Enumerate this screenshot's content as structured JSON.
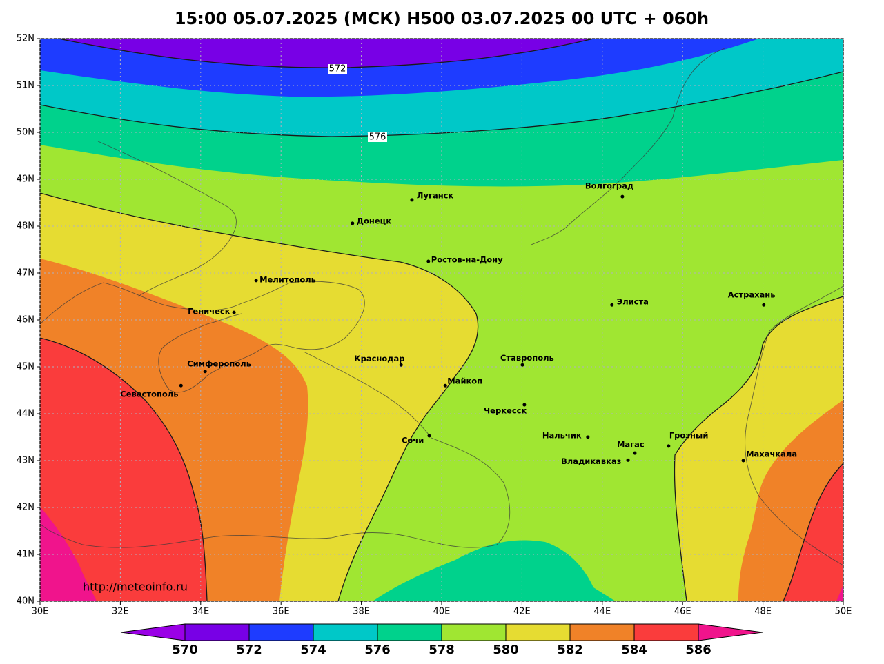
{
  "header": {
    "title": "15:00 05.07.2025 (МСК) H500  03.07.2025 00 UTC + 060h"
  },
  "map": {
    "lon_ticks": [
      {
        "value": 30,
        "label": "30E"
      },
      {
        "value": 32,
        "label": "32E"
      },
      {
        "value": 34,
        "label": "34E"
      },
      {
        "value": 36,
        "label": "36E"
      },
      {
        "value": 38,
        "label": "38E"
      },
      {
        "value": 40,
        "label": "40E"
      },
      {
        "value": 42,
        "label": "42E"
      },
      {
        "value": 44,
        "label": "44E"
      },
      {
        "value": 46,
        "label": "46E"
      },
      {
        "value": 48,
        "label": "48E"
      },
      {
        "value": 50,
        "label": "50E"
      }
    ],
    "lat_ticks": [
      {
        "value": 40,
        "label": "40N"
      },
      {
        "value": 41,
        "label": "41N"
      },
      {
        "value": 42,
        "label": "42N"
      },
      {
        "value": 43,
        "label": "43N"
      },
      {
        "value": 44,
        "label": "44N"
      },
      {
        "value": 45,
        "label": "45N"
      },
      {
        "value": 46,
        "label": "46N"
      },
      {
        "value": 47,
        "label": "47N"
      },
      {
        "value": 48,
        "label": "48N"
      },
      {
        "value": 49,
        "label": "49N"
      },
      {
        "value": 50,
        "label": "50N"
      },
      {
        "value": 51,
        "label": "51N"
      },
      {
        "value": 52,
        "label": "52N"
      }
    ],
    "lonlim": [
      30,
      50
    ],
    "latlim": [
      40,
      52
    ],
    "grid": true,
    "contour_labels": [
      572,
      576
    ],
    "cities": [
      {
        "name": "Волгоград",
        "lon": 44.5,
        "lat": 48.63
      },
      {
        "name": "Луганск",
        "lon": 39.26,
        "lat": 48.56
      },
      {
        "name": "Донецк",
        "lon": 37.78,
        "lat": 48.06
      },
      {
        "name": "Ростов-на-Дону",
        "lon": 39.67,
        "lat": 47.25
      },
      {
        "name": "Мелитополь",
        "lon": 35.38,
        "lat": 46.84
      },
      {
        "name": "Геническ",
        "lon": 34.83,
        "lat": 46.16
      },
      {
        "name": "Элиста",
        "lon": 44.24,
        "lat": 46.32
      },
      {
        "name": "Астрахань",
        "lon": 48.02,
        "lat": 46.32
      },
      {
        "name": "Симферополь",
        "lon": 34.11,
        "lat": 44.9
      },
      {
        "name": "Севастополь",
        "lon": 33.51,
        "lat": 44.6
      },
      {
        "name": "Краснодар",
        "lon": 38.99,
        "lat": 45.04
      },
      {
        "name": "Майкоп",
        "lon": 40.09,
        "lat": 44.6
      },
      {
        "name": "Ставрополь",
        "lon": 42.01,
        "lat": 45.04
      },
      {
        "name": "Черкесск",
        "lon": 42.06,
        "lat": 44.19
      },
      {
        "name": "Сочи",
        "lon": 39.69,
        "lat": 43.53
      },
      {
        "name": "Нальчик",
        "lon": 43.64,
        "lat": 43.5
      },
      {
        "name": "Магас",
        "lon": 44.81,
        "lat": 43.16
      },
      {
        "name": "Владикавказ",
        "lon": 44.64,
        "lat": 43.01
      },
      {
        "name": "Грозный",
        "lon": 45.65,
        "lat": 43.31
      },
      {
        "name": "Махачкала",
        "lon": 47.51,
        "lat": 43.0
      }
    ]
  },
  "colorbar": {
    "levels": [
      570,
      572,
      574,
      576,
      578,
      580,
      582,
      584,
      586
    ],
    "colors": [
      "#9a00e6",
      "#7800e6",
      "#1e3cff",
      "#00c8c8",
      "#00d28c",
      "#a0e632",
      "#e6dc32",
      "#f08228",
      "#fa3c3c",
      "#f0148c"
    ]
  },
  "footer": {
    "url": "http://meteoinfo.ru"
  }
}
